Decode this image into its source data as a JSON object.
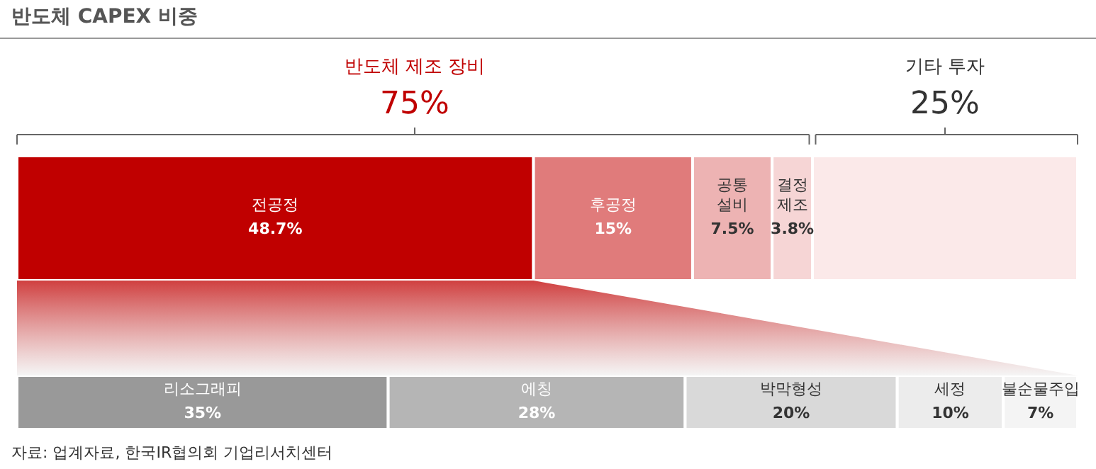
{
  "chart_data": [
    {
      "type": "bar",
      "orientation": "horizontal",
      "stacked": true,
      "title": "반도체 CAPEX 비중",
      "categories": [
        null
      ],
      "annotations": [
        "반도체 제조 장비",
        "75%",
        "기타 투자",
        "25%"
      ],
      "series": [
        {
          "name": "전공정",
          "color": "#c00000",
          "values": [
            48.7
          ],
          "value_labels": [
            "48.7%"
          ]
        },
        {
          "name": "후공정",
          "color": "#e07b7b",
          "values": [
            15
          ],
          "value_labels": [
            "15%"
          ]
        },
        {
          "name": "공통 설비",
          "color": "#edb3b3",
          "values": [
            7.5
          ],
          "value_labels": [
            "7.5%"
          ]
        },
        {
          "name": "결정 제조",
          "color": "#f6d5d5",
          "values": [
            3.8
          ],
          "value_labels": [
            "3.8%"
          ]
        },
        {
          "color": "#fbe9e9",
          "values": [
            25
          ]
        }
      ]
    },
    {
      "type": "bar",
      "orientation": "horizontal",
      "stacked": true,
      "categories": [
        null
      ],
      "annotations": [
        "자료: 업계자료, 한국IR협의회 기업리서치센터"
      ],
      "series": [
        {
          "name": "리소그래피",
          "color": "#999999",
          "values": [
            35
          ],
          "value_labels": [
            "35%"
          ]
        },
        {
          "name": "에칭",
          "color": "#b5b5b5",
          "values": [
            28
          ],
          "value_labels": [
            "28%"
          ]
        },
        {
          "name": "박막형성",
          "color": "#d9d9d9",
          "values": [
            20
          ],
          "value_labels": [
            "20%"
          ]
        },
        {
          "name": "세정",
          "color": "#ececec",
          "values": [
            10
          ],
          "value_labels": [
            "10%"
          ]
        },
        {
          "name": "불순물주입",
          "color": "#f4f4f4",
          "values": [
            7
          ],
          "value_labels": [
            "7%"
          ]
        }
      ]
    }
  ]
}
